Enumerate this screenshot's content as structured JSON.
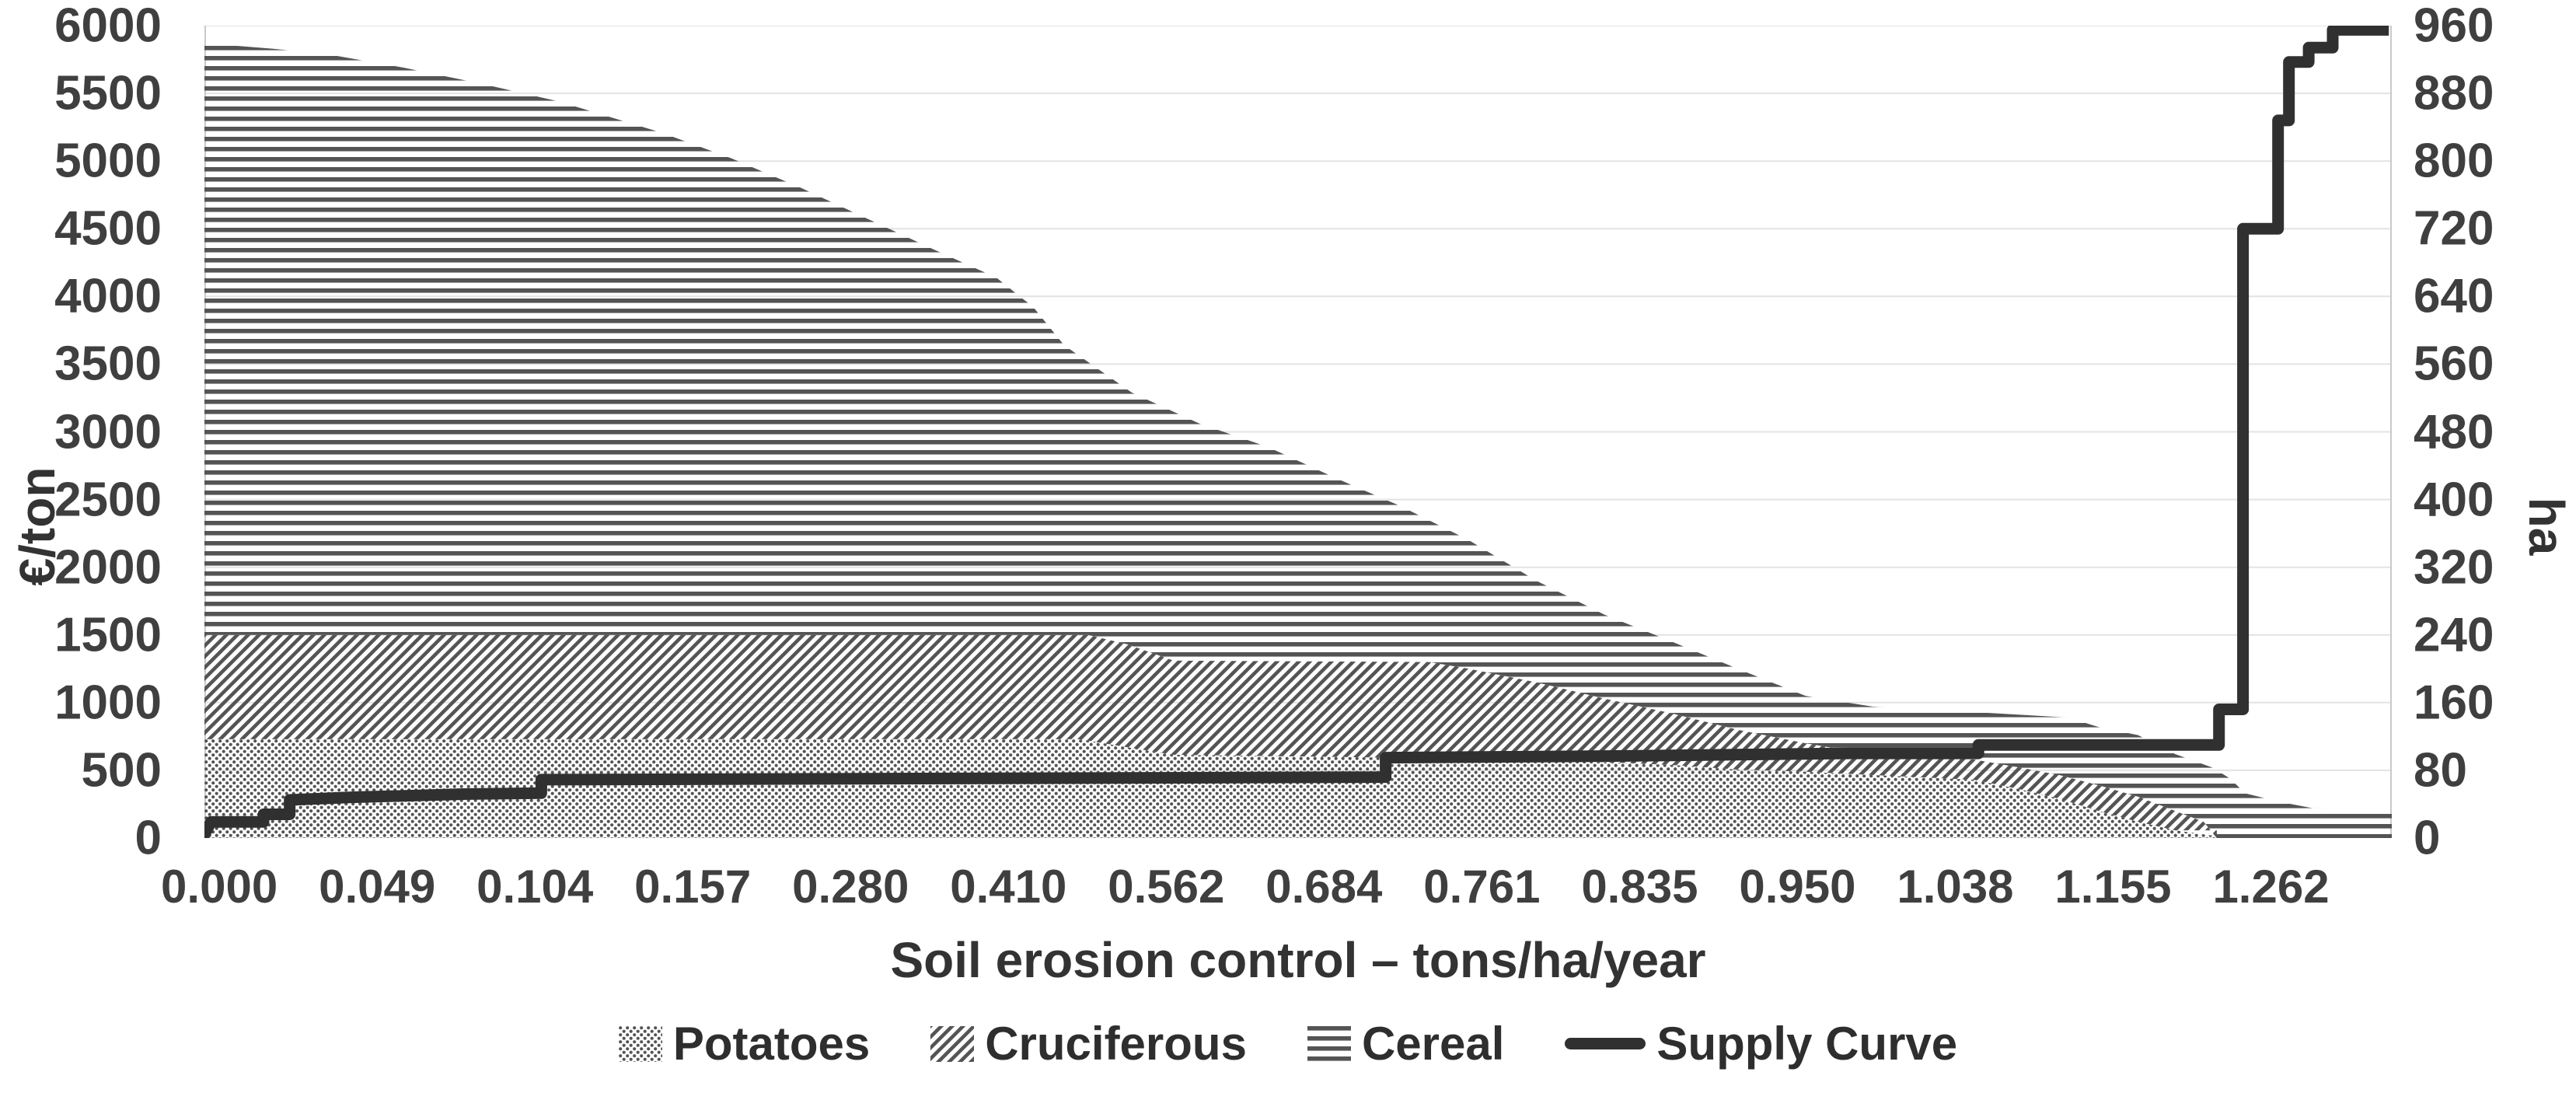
{
  "left_axis": {
    "title": "€/ton",
    "min": 0,
    "max": 6000,
    "step": 500,
    "ticks": [
      "0",
      "500",
      "1000",
      "1500",
      "2000",
      "2500",
      "3000",
      "3500",
      "4000",
      "4500",
      "5000",
      "5500",
      "6000"
    ]
  },
  "right_axis": {
    "title": "ha",
    "min": 0,
    "max": 960,
    "step": 80,
    "ticks": [
      "0",
      "80",
      "160",
      "240",
      "320",
      "400",
      "480",
      "560",
      "640",
      "720",
      "800",
      "880",
      "960"
    ]
  },
  "x_axis": {
    "title": "Soil erosion control – tons/ha/year",
    "tick_labels": [
      "0.000",
      "0.049",
      "0.104",
      "0.157",
      "0.280",
      "0.410",
      "0.562",
      "0.684",
      "0.761",
      "0.835",
      "0.950",
      "1.038",
      "1.155",
      "1.262"
    ]
  },
  "legend": [
    {
      "label": "Potatoes",
      "pattern": "dots"
    },
    {
      "label": "Cruciferous",
      "pattern": "hatch"
    },
    {
      "label": "Cereal",
      "pattern": "stripes"
    },
    {
      "label": "Supply Curve",
      "pattern": "line"
    }
  ],
  "colors": {
    "pattern_ink": "#545454",
    "supply_curve": "#303030",
    "grid": "#e3e3e3",
    "axis_line": "#c9c9c9",
    "text": "#3f3f3f"
  },
  "chart_data": {
    "type": "combo",
    "subtype": "stacked-area (marginal cost curves) + step line (supply curve)",
    "x_note": "x stored as fraction 0-1 of plot width; axis labels show cumulative soil erosion control in tons/ha/year",
    "area_unit": "€/ton (left axis)",
    "line_unit": "ha (right axis)",
    "grid": "horizontal gridlines every 500 €/ton (= 80 ha)",
    "legend_position": "bottom center",
    "boundaries_note": "cumulative stack tops in €/ton: potatoes_top=Potatoes; cruciferous_top=Potatoes+Cruciferous; cereal_top=total",
    "potatoes_top": [
      [
        0.0,
        730
      ],
      [
        0.4,
        730
      ],
      [
        0.422,
        670
      ],
      [
        0.443,
        615
      ],
      [
        0.535,
        595
      ],
      [
        0.578,
        590
      ],
      [
        0.64,
        560
      ],
      [
        0.671,
        540
      ],
      [
        0.701,
        505
      ],
      [
        0.732,
        490
      ],
      [
        0.763,
        465
      ],
      [
        0.809,
        430
      ],
      [
        0.83,
        360
      ],
      [
        0.848,
        290
      ],
      [
        0.866,
        200
      ],
      [
        0.884,
        120
      ],
      [
        0.901,
        57
      ],
      [
        0.926,
        0
      ]
    ],
    "cruciferous_top": [
      [
        0.0,
        1500
      ],
      [
        0.404,
        1500
      ],
      [
        0.422,
        1430
      ],
      [
        0.443,
        1310
      ],
      [
        0.56,
        1300
      ],
      [
        0.578,
        1250
      ],
      [
        0.609,
        1150
      ],
      [
        0.64,
        1030
      ],
      [
        0.671,
        920
      ],
      [
        0.701,
        800
      ],
      [
        0.732,
        700
      ],
      [
        0.763,
        615
      ],
      [
        0.809,
        580
      ],
      [
        0.83,
        520
      ],
      [
        0.848,
        465
      ],
      [
        0.866,
        390
      ],
      [
        0.884,
        305
      ],
      [
        0.901,
        200
      ],
      [
        0.914,
        120
      ],
      [
        0.92,
        0
      ]
    ],
    "cereal_top": [
      [
        0.0,
        5870
      ],
      [
        0.031,
        5830
      ],
      [
        0.056,
        5790
      ],
      [
        0.091,
        5690
      ],
      [
        0.127,
        5570
      ],
      [
        0.162,
        5440
      ],
      [
        0.209,
        5210
      ],
      [
        0.241,
        5020
      ],
      [
        0.273,
        4800
      ],
      [
        0.301,
        4590
      ],
      [
        0.333,
        4350
      ],
      [
        0.362,
        4140
      ],
      [
        0.379,
        3920
      ],
      [
        0.393,
        3640
      ],
      [
        0.424,
        3290
      ],
      [
        0.455,
        3060
      ],
      [
        0.486,
        2890
      ],
      [
        0.517,
        2660
      ],
      [
        0.547,
        2450
      ],
      [
        0.578,
        2200
      ],
      [
        0.609,
        1900
      ],
      [
        0.64,
        1650
      ],
      [
        0.671,
        1450
      ],
      [
        0.701,
        1250
      ],
      [
        0.732,
        1050
      ],
      [
        0.763,
        970
      ],
      [
        0.809,
        930
      ],
      [
        0.852,
        890
      ],
      [
        0.866,
        820
      ],
      [
        0.884,
        760
      ],
      [
        0.901,
        620
      ],
      [
        0.918,
        520
      ],
      [
        0.926,
        440
      ],
      [
        0.933,
        330
      ],
      [
        0.948,
        270
      ],
      [
        0.964,
        220
      ],
      [
        1.0,
        215
      ]
    ],
    "supply_curve_ha": [
      [
        0.0,
        4
      ],
      [
        0.003,
        19
      ],
      [
        0.027,
        19
      ],
      [
        0.027,
        28
      ],
      [
        0.039,
        28
      ],
      [
        0.039,
        45
      ],
      [
        0.066,
        48
      ],
      [
        0.12,
        52
      ],
      [
        0.154,
        53
      ],
      [
        0.154,
        69
      ],
      [
        0.3,
        70
      ],
      [
        0.54,
        72
      ],
      [
        0.54,
        95
      ],
      [
        0.65,
        97
      ],
      [
        0.752,
        100
      ],
      [
        0.811,
        100
      ],
      [
        0.811,
        110
      ],
      [
        0.921,
        110
      ],
      [
        0.921,
        152
      ],
      [
        0.932,
        152
      ],
      [
        0.932,
        720
      ],
      [
        0.948,
        720
      ],
      [
        0.948,
        848
      ],
      [
        0.953,
        848
      ],
      [
        0.953,
        917
      ],
      [
        0.962,
        917
      ],
      [
        0.962,
        934
      ],
      [
        0.973,
        934
      ],
      [
        0.973,
        955
      ],
      [
        0.996,
        955
      ]
    ]
  }
}
